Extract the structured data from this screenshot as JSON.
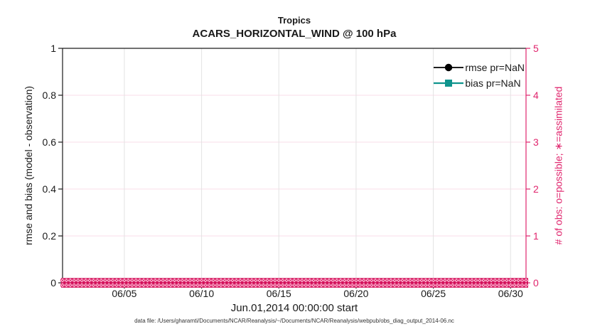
{
  "caption": {
    "text": "data file: /Users/gharamti/Documents/NCAR/Reanalysis/~/Documents/NCAR/Reanalysis/webpub/obs_diag_output_2014-06.nc"
  },
  "chart_data": {
    "type": "line",
    "title": "Tropics",
    "subtitle": "ACARS_HORIZONTAL_WIND @ 100 hPa",
    "xlabel": "Jun.01,2014 00:00:00 start",
    "ylabel_left": "rmse and bias (model - observation)",
    "ylabel_right": "# of obs: o=possible; ∗=assimilated",
    "x_range_days": [
      0,
      30
    ],
    "x_ticks": [
      {
        "day": 4,
        "label": "06/05"
      },
      {
        "day": 9,
        "label": "06/10"
      },
      {
        "day": 14,
        "label": "06/15"
      },
      {
        "day": 19,
        "label": "06/20"
      },
      {
        "day": 24,
        "label": "06/25"
      },
      {
        "day": 29,
        "label": "06/30"
      }
    ],
    "ylim_left": [
      0,
      1
    ],
    "yticks_left": [
      {
        "v": 0,
        "label": "0"
      },
      {
        "v": 0.2,
        "label": "0.2"
      },
      {
        "v": 0.4,
        "label": "0.4"
      },
      {
        "v": 0.6,
        "label": "0.6"
      },
      {
        "v": 0.8,
        "label": "0.8"
      },
      {
        "v": 1,
        "label": "1"
      }
    ],
    "ylim_right": [
      0,
      5
    ],
    "yticks_right": [
      {
        "v": 0,
        "label": "0"
      },
      {
        "v": 1,
        "label": "1"
      },
      {
        "v": 2,
        "label": "2"
      },
      {
        "v": 3,
        "label": "3"
      },
      {
        "v": 4,
        "label": "4"
      },
      {
        "v": 5,
        "label": "5"
      }
    ],
    "grid": true,
    "legend_position": "top-right",
    "series": [
      {
        "name": "rmse pr=NaN",
        "color": "#000000",
        "marker": "circle",
        "values": []
      },
      {
        "name": "bias pr=NaN",
        "color": "#0f948d",
        "marker": "square",
        "values": []
      }
    ],
    "obs_counts": {
      "possible_value": 0,
      "assimilated_value": 0,
      "n_times": 121
    },
    "colors": {
      "axis_left": "#1a1a1a",
      "axis_right": "#e0256d",
      "grid_vertical": "#e3e3e3",
      "grid_horizontal": "#f8dde9",
      "obs_band_bg": "#cb0f55",
      "obs_marker": "#e0256d",
      "obs_marker_fill": "#ffffff"
    }
  }
}
